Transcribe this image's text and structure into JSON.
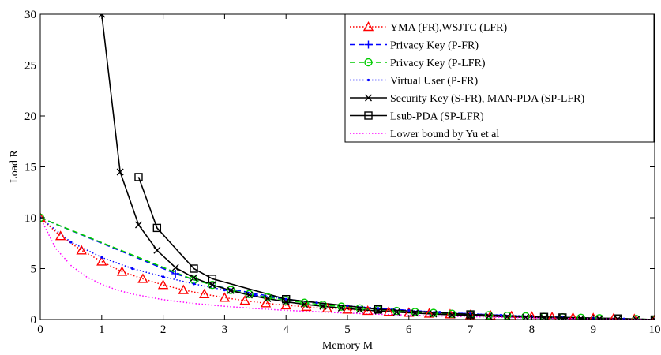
{
  "chart_data": {
    "type": "line",
    "title": "",
    "xlabel": "Memory M",
    "ylabel": "Load R",
    "xlim": [
      0,
      10
    ],
    "ylim": [
      0,
      30
    ],
    "xticks": [
      0,
      1,
      2,
      3,
      4,
      5,
      6,
      7,
      8,
      9,
      10
    ],
    "yticks": [
      0,
      5,
      10,
      15,
      20,
      25,
      30
    ],
    "grid": false,
    "legend_position": "top-right",
    "series": [
      {
        "name": "YMA (FR),WSJTC (LFR)",
        "color": "#ff0000",
        "line_style": "dotted",
        "marker": "triangle",
        "x": [
          0,
          0.33,
          0.67,
          1.0,
          1.33,
          1.67,
          2.0,
          2.33,
          2.67,
          3.0,
          3.33,
          3.67,
          4.0,
          4.33,
          4.67,
          5.0,
          5.33,
          5.67,
          6.0,
          6.33,
          6.67,
          7.0,
          7.33,
          7.67,
          8.0,
          8.33,
          8.67,
          9.0,
          9.33,
          9.67,
          10.0
        ],
        "y": [
          10.0,
          8.2,
          6.8,
          5.7,
          4.7,
          4.0,
          3.4,
          2.9,
          2.5,
          2.15,
          1.85,
          1.6,
          1.4,
          1.25,
          1.1,
          0.98,
          0.86,
          0.76,
          0.67,
          0.59,
          0.52,
          0.45,
          0.39,
          0.34,
          0.29,
          0.24,
          0.19,
          0.14,
          0.1,
          0.05,
          0.0
        ]
      },
      {
        "name": "Privacy Key (P-FR)",
        "color": "#0000ff",
        "line_style": "dashed",
        "marker": "plus",
        "x": [
          0,
          2.2,
          2.5,
          3.0,
          4.0,
          5.0,
          6.0,
          7.0,
          8.0,
          9.0,
          10.0
        ],
        "y": [
          10.0,
          4.5,
          3.9,
          3.1,
          2.0,
          1.3,
          0.9,
          0.55,
          0.3,
          0.12,
          0.0
        ],
        "marker_x": [
          2.2
        ],
        "marker_y": [
          4.5
        ]
      },
      {
        "name": "Privacy Key (P-LFR)",
        "color": "#00cc00",
        "line_style": "dashed",
        "marker": "circle",
        "x": [
          0,
          2.5,
          2.8,
          3.1,
          3.4,
          3.7,
          4.0,
          4.3,
          4.6,
          4.9,
          5.2,
          5.5,
          5.8,
          6.1,
          6.4,
          6.7,
          7.0,
          7.3,
          7.6,
          7.9,
          8.2,
          8.5,
          8.8,
          9.1,
          9.4,
          9.7,
          10.0
        ],
        "y": [
          10.0,
          3.9,
          3.4,
          2.9,
          2.5,
          2.2,
          1.9,
          1.65,
          1.45,
          1.27,
          1.1,
          0.97,
          0.85,
          0.74,
          0.65,
          0.57,
          0.5,
          0.43,
          0.37,
          0.32,
          0.27,
          0.22,
          0.17,
          0.13,
          0.09,
          0.05,
          0.0
        ]
      },
      {
        "name": "Virtual User (P-FR)",
        "color": "#0000ff",
        "line_style": "dotted",
        "marker": "dot",
        "x": [
          0,
          0.5,
          1.0,
          1.5,
          2.0,
          2.5,
          3.0,
          3.5,
          4.0,
          4.5,
          5.0,
          5.5,
          6.0,
          6.5,
          7.0,
          7.5,
          8.0,
          8.5,
          9.0,
          9.5,
          10.0
        ],
        "y": [
          10.0,
          7.6,
          6.1,
          5.0,
          4.2,
          3.5,
          2.9,
          2.4,
          2.0,
          1.65,
          1.35,
          1.1,
          0.9,
          0.72,
          0.57,
          0.44,
          0.33,
          0.23,
          0.14,
          0.06,
          0.0
        ]
      },
      {
        "name": "Security Key (S-FR), MAN-PDA (SP-LFR)",
        "color": "#000000",
        "line_style": "solid",
        "marker": "x",
        "x": [
          1.0,
          1.3,
          1.6,
          1.9,
          2.2,
          2.5,
          2.8,
          3.1,
          3.4,
          3.7,
          4.0,
          4.3,
          4.6,
          4.9,
          5.2,
          5.5,
          5.8,
          6.1,
          6.4,
          6.7,
          7.0,
          7.3,
          7.6,
          7.9,
          8.2,
          8.5,
          8.8,
          9.1,
          9.4,
          9.7,
          10.0
        ],
        "y": [
          30.0,
          14.5,
          9.3,
          6.8,
          5.1,
          4.1,
          3.4,
          2.85,
          2.4,
          2.05,
          1.75,
          1.5,
          1.3,
          1.12,
          0.97,
          0.84,
          0.73,
          0.63,
          0.54,
          0.46,
          0.39,
          0.33,
          0.27,
          0.22,
          0.18,
          0.14,
          0.1,
          0.07,
          0.04,
          0.02,
          0.0
        ]
      },
      {
        "name": "Lsub-PDA (SP-LFR)",
        "color": "#000000",
        "line_style": "solid",
        "marker": "square",
        "x": [
          1.6,
          1.9,
          2.5,
          2.8,
          4.0,
          5.5,
          7.0,
          8.2,
          8.5,
          9.4,
          10.0
        ],
        "y": [
          14.0,
          9.0,
          5.0,
          4.0,
          2.0,
          1.0,
          0.5,
          0.25,
          0.2,
          0.1,
          0.0
        ]
      },
      {
        "name": "Lower bound by Yu et al",
        "color": "#ff00ff",
        "line_style": "dotted",
        "marker": "none",
        "x": [
          0,
          0.25,
          0.5,
          0.75,
          1.0,
          1.25,
          1.5,
          2.0,
          2.5,
          3.0,
          3.5,
          4.0,
          4.5,
          5.0,
          5.5,
          6.0,
          6.5,
          7.0,
          7.5,
          8.0,
          8.5,
          9.0,
          9.5,
          10.0
        ],
        "y": [
          10.0,
          7.0,
          5.3,
          4.2,
          3.45,
          2.9,
          2.5,
          1.95,
          1.58,
          1.3,
          1.08,
          0.9,
          0.76,
          0.63,
          0.52,
          0.43,
          0.35,
          0.28,
          0.22,
          0.16,
          0.11,
          0.07,
          0.03,
          0.0
        ]
      }
    ]
  }
}
